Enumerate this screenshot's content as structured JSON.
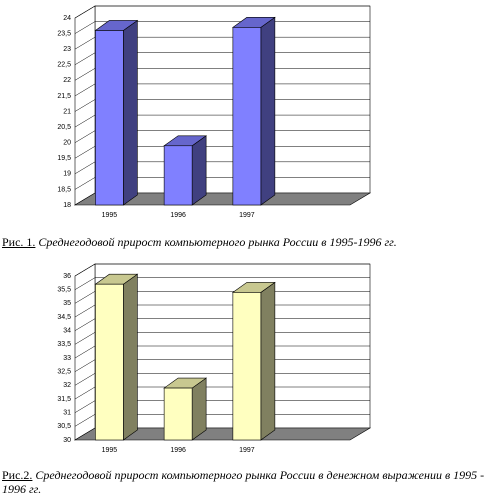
{
  "chart_data": [
    {
      "type": "bar3d",
      "figure_label": "Рис. 1.",
      "caption": "Среднегодовой прирост компьютерного рынка России в 1995-1996 гг.",
      "categories": [
        "1995",
        "1996",
        "1997"
      ],
      "values": [
        23.6,
        19.9,
        23.7
      ],
      "colors": {
        "front": "#8080ff",
        "side": "#404080",
        "top": "#6666cc"
      },
      "ylim": [
        18,
        24
      ],
      "yticks": [
        18,
        {
          "value": 18.5,
          "label": "18,5"
        },
        19,
        {
          "value": 19.5,
          "label": "19,5"
        },
        20,
        {
          "value": 20.5,
          "label": "20,5"
        },
        21,
        {
          "value": 21.5,
          "label": "21,5"
        },
        22,
        {
          "value": 22.5,
          "label": "22,5"
        },
        23,
        {
          "value": 23.5,
          "label": "23,5"
        },
        24
      ],
      "grid": true
    },
    {
      "type": "bar3d",
      "figure_label": "Рис.2.",
      "caption": "Среднегодовой прирост компьютерного рынка России в денежном выражении в 1995 - 1996 гг.",
      "categories": [
        "1995",
        "1996",
        "1997"
      ],
      "values": [
        35.7,
        31.9,
        35.4
      ],
      "colors": {
        "front": "#ffffc0",
        "side": "#808060",
        "top": "#c8c890"
      },
      "ylim": [
        30,
        36
      ],
      "yticks": [
        30,
        {
          "value": 30.5,
          "label": "30,5"
        },
        31,
        {
          "value": 31.5,
          "label": "31,5"
        },
        32,
        {
          "value": 32.5,
          "label": "32,5"
        },
        33,
        {
          "value": 33.5,
          "label": "33,5"
        },
        34,
        {
          "value": 34.5,
          "label": "34,5"
        },
        35,
        {
          "value": 35.5,
          "label": "35,5"
        },
        36
      ],
      "grid": true
    }
  ]
}
